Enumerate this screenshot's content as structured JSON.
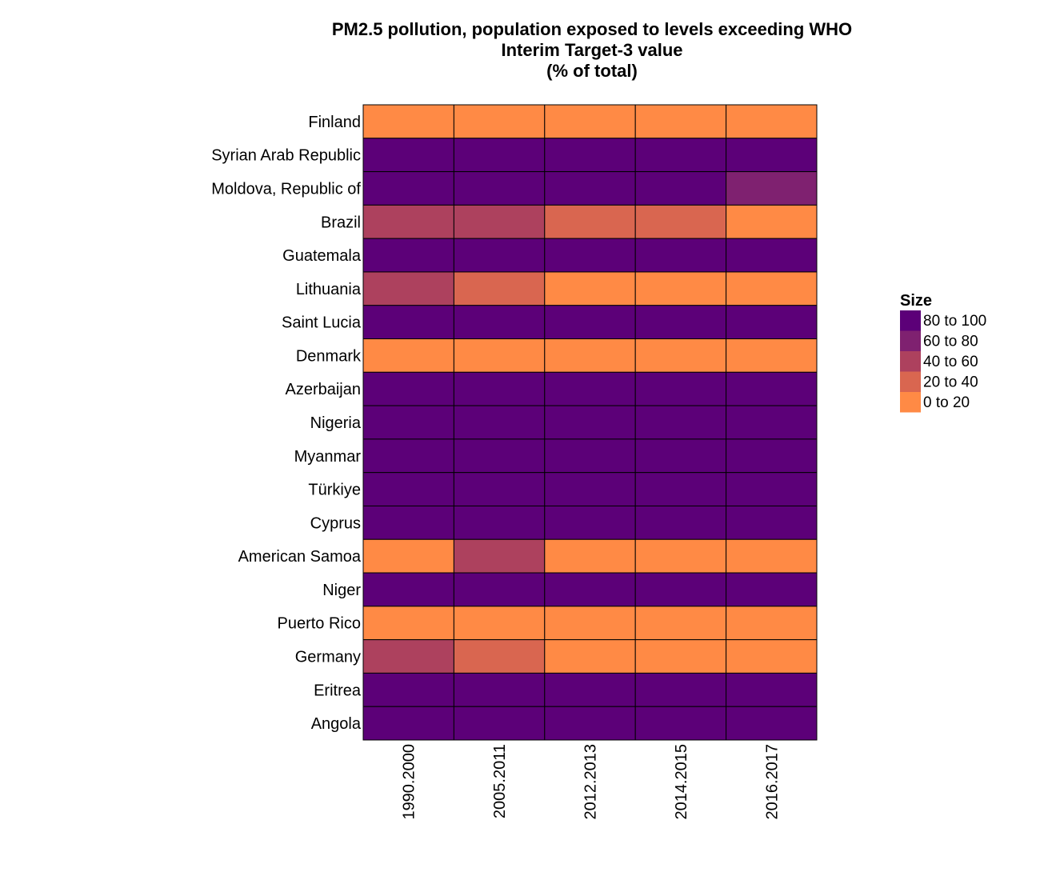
{
  "chart_data": {
    "type": "heatmap",
    "title": [
      "PM2.5 pollution, population exposed to levels exceeding WHO",
      "Interim Target-3 value",
      "(% of total)"
    ],
    "x": [
      "1990.2000",
      "2005.2011",
      "2012.2013",
      "2014.2015",
      "2016.2017"
    ],
    "y": [
      "Finland",
      "Syrian Arab Republic",
      "Moldova, Republic of",
      "Brazil",
      "Guatemala",
      "Lithuania",
      "Saint Lucia",
      "Denmark",
      "Azerbaijan",
      "Nigeria",
      "Myanmar",
      "Türkiye",
      "Cyprus",
      "American Samoa",
      "Niger",
      "Puerto Rico",
      "Germany",
      "Eritrea",
      "Angola"
    ],
    "categories": [
      "80 to 100",
      "60 to 80",
      "40 to 60",
      "20 to 40",
      "0 to 20"
    ],
    "colors": {
      "80 to 100": "#5c0078",
      "60 to 80": "#7f2170",
      "40 to 60": "#ad415e",
      "20 to 40": "#d96650",
      "0 to 20": "#ff8a45"
    },
    "values": [
      [
        "0 to 20",
        "0 to 20",
        "0 to 20",
        "0 to 20",
        "0 to 20"
      ],
      [
        "80 to 100",
        "80 to 100",
        "80 to 100",
        "80 to 100",
        "80 to 100"
      ],
      [
        "80 to 100",
        "80 to 100",
        "80 to 100",
        "80 to 100",
        "60 to 80"
      ],
      [
        "40 to 60",
        "40 to 60",
        "20 to 40",
        "20 to 40",
        "0 to 20"
      ],
      [
        "80 to 100",
        "80 to 100",
        "80 to 100",
        "80 to 100",
        "80 to 100"
      ],
      [
        "40 to 60",
        "20 to 40",
        "0 to 20",
        "0 to 20",
        "0 to 20"
      ],
      [
        "80 to 100",
        "80 to 100",
        "80 to 100",
        "80 to 100",
        "80 to 100"
      ],
      [
        "0 to 20",
        "0 to 20",
        "0 to 20",
        "0 to 20",
        "0 to 20"
      ],
      [
        "80 to 100",
        "80 to 100",
        "80 to 100",
        "80 to 100",
        "80 to 100"
      ],
      [
        "80 to 100",
        "80 to 100",
        "80 to 100",
        "80 to 100",
        "80 to 100"
      ],
      [
        "80 to 100",
        "80 to 100",
        "80 to 100",
        "80 to 100",
        "80 to 100"
      ],
      [
        "80 to 100",
        "80 to 100",
        "80 to 100",
        "80 to 100",
        "80 to 100"
      ],
      [
        "80 to 100",
        "80 to 100",
        "80 to 100",
        "80 to 100",
        "80 to 100"
      ],
      [
        "0 to 20",
        "40 to 60",
        "0 to 20",
        "0 to 20",
        "0 to 20"
      ],
      [
        "80 to 100",
        "80 to 100",
        "80 to 100",
        "80 to 100",
        "80 to 100"
      ],
      [
        "0 to 20",
        "0 to 20",
        "0 to 20",
        "0 to 20",
        "0 to 20"
      ],
      [
        "40 to 60",
        "20 to 40",
        "0 to 20",
        "0 to 20",
        "0 to 20"
      ],
      [
        "80 to 100",
        "80 to 100",
        "80 to 100",
        "80 to 100",
        "80 to 100"
      ],
      [
        "80 to 100",
        "80 to 100",
        "80 to 100",
        "80 to 100",
        "80 to 100"
      ]
    ],
    "legend": {
      "title": "Size",
      "position": "right"
    },
    "grid": false,
    "cell_border_color": "#000000"
  }
}
